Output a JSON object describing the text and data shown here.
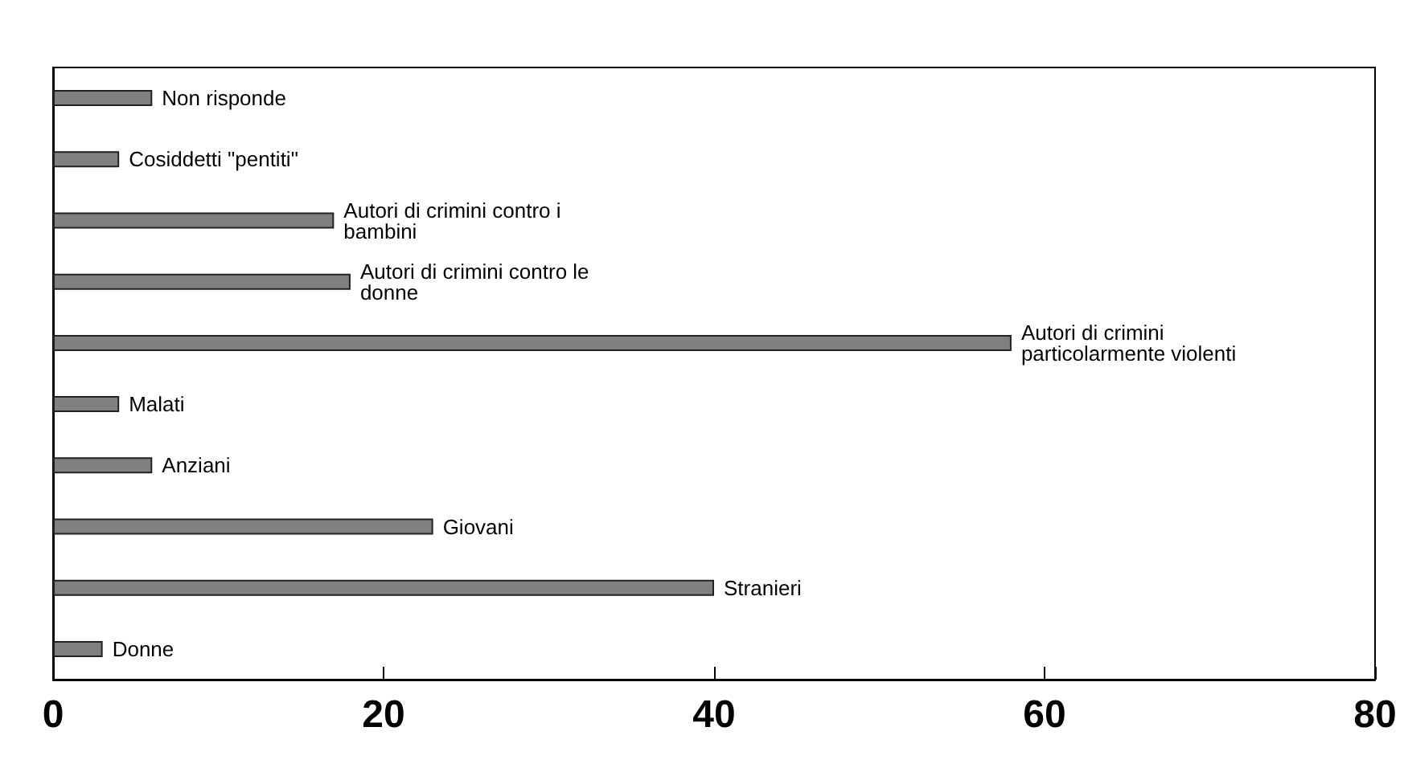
{
  "chart_data": {
    "type": "bar",
    "orientation": "horizontal",
    "categories": [
      "Non risponde",
      "Cosiddetti \"pentiti\"",
      "Autori di crimini contro i bambini",
      "Autori di crimini contro le donne",
      "Autori di crimini particolarmente violenti",
      "Malati",
      "Anziani",
      "Giovani",
      "Stranieri",
      "Donne"
    ],
    "values": [
      6,
      4,
      17,
      18,
      58,
      4,
      6,
      23,
      40,
      3
    ],
    "color": "#808080",
    "xlim": [
      0,
      80
    ],
    "xticks": [
      0,
      20,
      40,
      60,
      80
    ],
    "tick_labels": "x"
  }
}
